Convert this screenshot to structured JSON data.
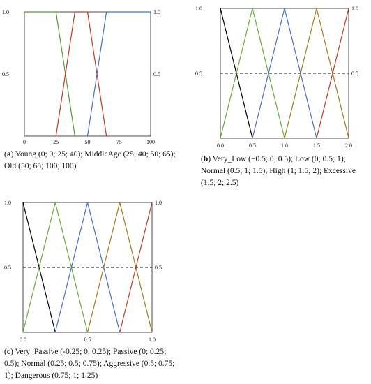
{
  "panels": [
    {
      "letter": "a",
      "caption": "Young (0; 0; 25; 40); MiddleAge (25; 40; 50; 65); Old (50; 65; 100; 100)",
      "chart_data": {
        "type": "line",
        "xlim": [
          0,
          100
        ],
        "ylim": [
          0,
          1
        ],
        "x_ticks": [
          "0",
          "25",
          "50",
          "75",
          "100"
        ],
        "x_tick_values": [
          0,
          25,
          50,
          75,
          100
        ],
        "y_ticks": [
          "0.5",
          "1.0"
        ],
        "y_tick_values": [
          0.5,
          1.0
        ],
        "right_y_ticks": [
          "0.5",
          "1.0"
        ],
        "dashed_half_line": false,
        "series": [
          {
            "color": "#5a9a3a",
            "points": [
              [
                0,
                1
              ],
              [
                25,
                1
              ],
              [
                40,
                0
              ]
            ]
          },
          {
            "color": "#c0392b",
            "points": [
              [
                25,
                0
              ],
              [
                40,
                1
              ],
              [
                50,
                1
              ],
              [
                65,
                0
              ]
            ]
          },
          {
            "color": "#4a6fc0",
            "points": [
              [
                50,
                0
              ],
              [
                65,
                1
              ],
              [
                100,
                1
              ]
            ]
          }
        ]
      }
    },
    {
      "letter": "b",
      "caption": "Very_Low (−0.5; 0; 0.5); Low (0; 0.5; 1); Normal (0.5; 1; 1.5); High (1; 1.5; 2); Excessive (1.5; 2; 2.5)",
      "chart_data": {
        "type": "line",
        "xlim": [
          0,
          2
        ],
        "ylim": [
          0,
          1
        ],
        "x_ticks": [
          "0.0",
          "0.5",
          "1.0",
          "1.5",
          "2.0"
        ],
        "x_tick_values": [
          0,
          0.5,
          1.0,
          1.5,
          2.0
        ],
        "y_ticks": [
          "0.5",
          "1.0"
        ],
        "y_tick_values": [
          0.5,
          1.0
        ],
        "right_y_ticks": [
          "0.5",
          "1.0"
        ],
        "dashed_half_line": true,
        "series": [
          {
            "color": "#000000",
            "points": [
              [
                0,
                1
              ],
              [
                0.5,
                0
              ]
            ]
          },
          {
            "color": "#6aaa3a",
            "points": [
              [
                0,
                0
              ],
              [
                0.5,
                1
              ],
              [
                1,
                0
              ]
            ]
          },
          {
            "color": "#4a6fc0",
            "points": [
              [
                0.5,
                0
              ],
              [
                1,
                1
              ],
              [
                1.5,
                0
              ]
            ]
          },
          {
            "color": "#a07a20",
            "points": [
              [
                1,
                0
              ],
              [
                1.5,
                1
              ],
              [
                2,
                0
              ]
            ]
          },
          {
            "color": "#c0392b",
            "points": [
              [
                1.5,
                0
              ],
              [
                2,
                1
              ]
            ]
          }
        ]
      }
    },
    {
      "letter": "c",
      "caption": "Very_Passive (-0.25; 0; 0.25); Passive (0; 0.25; 0.5); Normal (0.25; 0.5; 0.75); Aggressive (0.5; 0.75; 1); Dangerous (0.75; 1; 1.25)",
      "chart_data": {
        "type": "line",
        "xlim": [
          0,
          1
        ],
        "ylim": [
          0,
          1
        ],
        "x_ticks": [
          "0.0",
          "0.5",
          "1.0"
        ],
        "x_tick_values": [
          0,
          0.5,
          1.0
        ],
        "y_ticks": [
          "0.5",
          "1.0"
        ],
        "y_tick_values": [
          0.5,
          1.0
        ],
        "right_y_ticks": [
          "0.5",
          "1.0"
        ],
        "dashed_half_line": true,
        "series": [
          {
            "color": "#000000",
            "points": [
              [
                0,
                1
              ],
              [
                0.25,
                0
              ]
            ]
          },
          {
            "color": "#6aaa3a",
            "points": [
              [
                0,
                0
              ],
              [
                0.25,
                1
              ],
              [
                0.5,
                0
              ]
            ]
          },
          {
            "color": "#4a6fc0",
            "points": [
              [
                0.25,
                0
              ],
              [
                0.5,
                1
              ],
              [
                0.75,
                0
              ]
            ]
          },
          {
            "color": "#a07a20",
            "points": [
              [
                0.5,
                0
              ],
              [
                0.75,
                1
              ],
              [
                1,
                0
              ]
            ]
          },
          {
            "color": "#c0392b",
            "points": [
              [
                0.75,
                0
              ],
              [
                1,
                1
              ]
            ]
          }
        ]
      }
    }
  ]
}
